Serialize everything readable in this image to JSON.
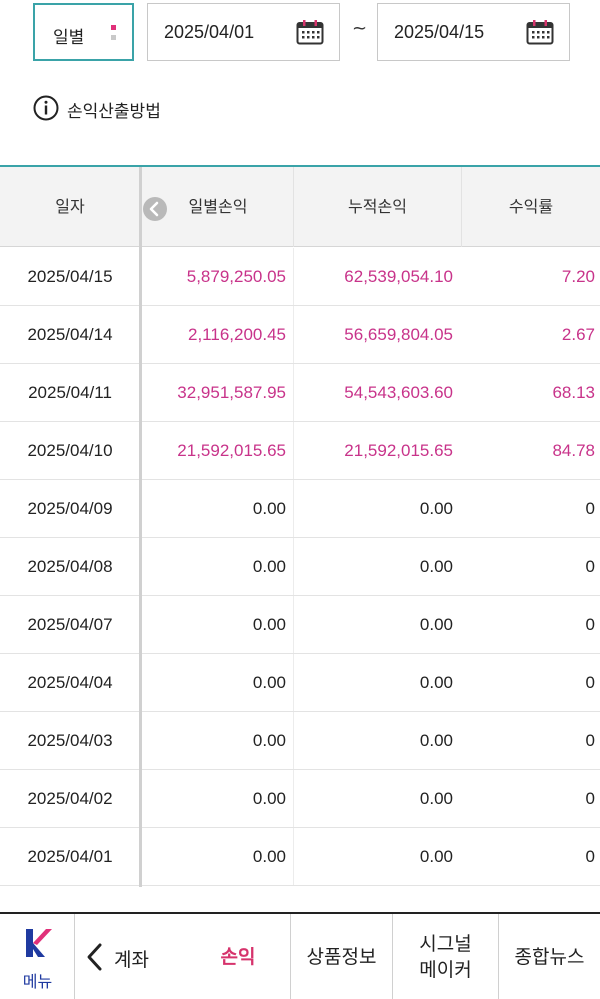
{
  "filter": {
    "period_label": "일별",
    "start_date": "2025/04/01",
    "end_date": "2025/04/15",
    "separator": "~"
  },
  "info": {
    "label": "손익산출방법"
  },
  "table": {
    "headers": [
      "일자",
      "일별손익",
      "누적손익",
      "수익률"
    ],
    "rows": [
      {
        "date": "2025/04/15",
        "daily": "5,879,250.05",
        "cumulative": "62,539,054.10",
        "rate": "7.20"
      },
      {
        "date": "2025/04/14",
        "daily": "2,116,200.45",
        "cumulative": "56,659,804.05",
        "rate": "2.67"
      },
      {
        "date": "2025/04/11",
        "daily": "32,951,587.95",
        "cumulative": "54,543,603.60",
        "rate": "68.13"
      },
      {
        "date": "2025/04/10",
        "daily": "21,592,015.65",
        "cumulative": "21,592,015.65",
        "rate": "84.78"
      },
      {
        "date": "2025/04/09",
        "daily": "0.00",
        "cumulative": "0.00",
        "rate": "0"
      },
      {
        "date": "2025/04/08",
        "daily": "0.00",
        "cumulative": "0.00",
        "rate": "0"
      },
      {
        "date": "2025/04/07",
        "daily": "0.00",
        "cumulative": "0.00",
        "rate": "0"
      },
      {
        "date": "2025/04/04",
        "daily": "0.00",
        "cumulative": "0.00",
        "rate": "0"
      },
      {
        "date": "2025/04/03",
        "daily": "0.00",
        "cumulative": "0.00",
        "rate": "0"
      },
      {
        "date": "2025/04/02",
        "daily": "0.00",
        "cumulative": "0.00",
        "rate": "0"
      },
      {
        "date": "2025/04/01",
        "daily": "0.00",
        "cumulative": "0.00",
        "rate": "0"
      }
    ]
  },
  "nav": {
    "menu_label": "메뉴",
    "back_label": "계좌",
    "tabs": [
      {
        "label": "손익",
        "active": true
      },
      {
        "label": "상품정보",
        "active": false
      },
      {
        "label": "시그널\n메이커",
        "active": false
      },
      {
        "label": "종합뉴스",
        "active": false
      }
    ]
  },
  "colors": {
    "accent": "#3aa3a8",
    "positive": "#c8338a",
    "active_tab": "#d6336c",
    "brand_blue": "#1f3aa0"
  },
  "icons": [
    "dropdown-icon",
    "calendar-icon",
    "info-icon",
    "scroll-left-icon",
    "k-logo-icon",
    "chevron-left-icon"
  ]
}
